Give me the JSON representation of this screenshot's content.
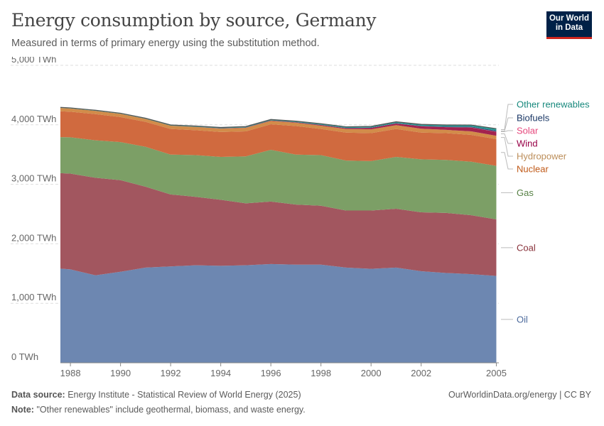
{
  "header": {
    "title": "Energy consumption by source, Germany",
    "subtitle": "Measured in terms of primary energy using the substitution method.",
    "logo_line1": "Our World",
    "logo_line2": "in Data"
  },
  "footer": {
    "source_label": "Data source:",
    "source_text": "Energy Institute - Statistical Review of World Energy (2025)",
    "note_label": "Note:",
    "note_text": "\"Other renewables\" include geothermal, biomass, and waste energy.",
    "credit": "OurWorldinData.org/energy | CC BY"
  },
  "chart_data": {
    "type": "area",
    "stacked": true,
    "x": [
      1987,
      1988,
      1989,
      1990,
      1991,
      1992,
      1993,
      1994,
      1995,
      1996,
      1997,
      1998,
      1999,
      2000,
      2001,
      2002,
      2003,
      2004,
      2005
    ],
    "xlim": [
      1987.6,
      2005.1
    ],
    "x_ticks": [
      1988,
      1990,
      1992,
      1994,
      1996,
      1998,
      2000,
      2002,
      2005
    ],
    "ylim": [
      0,
      5000
    ],
    "y_ticks": [
      0,
      1000,
      2000,
      3000,
      4000,
      5000
    ],
    "y_tick_labels": [
      "0 TWh",
      "1,000 TWh",
      "2,000 TWh",
      "3,000 TWh",
      "4,000 TWh",
      "5,000 TWh"
    ],
    "grid": "horizontal-dashed",
    "legend": "right-inline",
    "series": [
      {
        "name": "Oil",
        "color": "#6d87b1",
        "label_color": "#4c6a9c",
        "values": [
          1600,
          1570,
          1470,
          1530,
          1600,
          1620,
          1640,
          1630,
          1640,
          1660,
          1650,
          1650,
          1600,
          1580,
          1600,
          1540,
          1510,
          1490,
          1460
        ]
      },
      {
        "name": "Coal",
        "color": "#a2565f",
        "label_color": "#883039",
        "values": [
          1600,
          1610,
          1640,
          1540,
          1360,
          1210,
          1150,
          1110,
          1040,
          1050,
          1010,
          990,
          960,
          980,
          990,
          990,
          1010,
          990,
          950
        ]
      },
      {
        "name": "Gas",
        "color": "#7c9f66",
        "label_color": "#578145",
        "values": [
          600,
          610,
          630,
          640,
          670,
          670,
          700,
          720,
          790,
          870,
          840,
          850,
          840,
          830,
          870,
          890,
          890,
          900,
          900
        ]
      },
      {
        "name": "Nuclear",
        "color": "#d06a3f",
        "label_color": "#c05917",
        "values": [
          440,
          430,
          440,
          420,
          420,
          430,
          420,
          420,
          420,
          430,
          480,
          440,
          470,
          470,
          470,
          450,
          450,
          450,
          450
        ]
      },
      {
        "name": "Hydropower",
        "color": "#d28c4a",
        "label_color": "#bc8e5a",
        "values": [
          56,
          55,
          55,
          55,
          50,
          55,
          55,
          57,
          60,
          57,
          55,
          56,
          60,
          65,
          65,
          65,
          55,
          60,
          55
        ]
      },
      {
        "name": "Wind",
        "color": "#a2234f",
        "label_color": "#970046",
        "values": [
          0,
          0,
          0,
          0,
          0,
          1,
          2,
          4,
          5,
          6,
          8,
          12,
          14,
          24,
          27,
          40,
          46,
          65,
          68
        ]
      },
      {
        "name": "Solar",
        "color": "#e56e86",
        "label_color": "#e6477c",
        "values": [
          0,
          0,
          0,
          0,
          0,
          0,
          0,
          0,
          0,
          0,
          0,
          0,
          0,
          0,
          1,
          1,
          1,
          2,
          3
        ]
      },
      {
        "name": "Biofuels",
        "color": "#2e4e7a",
        "label_color": "#1a3765",
        "values": [
          0,
          0,
          0,
          0,
          0,
          0,
          0,
          1,
          1,
          1,
          2,
          3,
          4,
          5,
          6,
          8,
          10,
          12,
          18
        ]
      },
      {
        "name": "Other renewables",
        "color": "#2a9a92",
        "label_color": "#18897d",
        "values": [
          10,
          10,
          10,
          10,
          11,
          12,
          13,
          14,
          15,
          16,
          17,
          18,
          19,
          20,
          22,
          24,
          26,
          28,
          32
        ]
      }
    ]
  }
}
